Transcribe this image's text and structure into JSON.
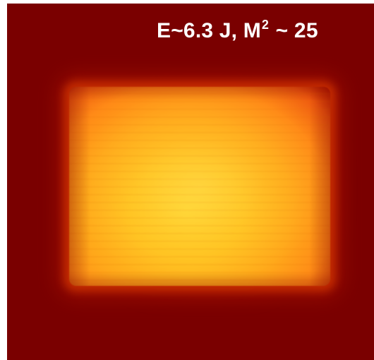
{
  "image": {
    "label": {
      "prefix": "E~6.3 J, M",
      "superscript": "2",
      "suffix": " ~ 25"
    },
    "colors": {
      "background": "#7a0000",
      "beam_core": "#ffc11f",
      "beam_edge": "#c22100",
      "text": "#ffffff"
    }
  }
}
